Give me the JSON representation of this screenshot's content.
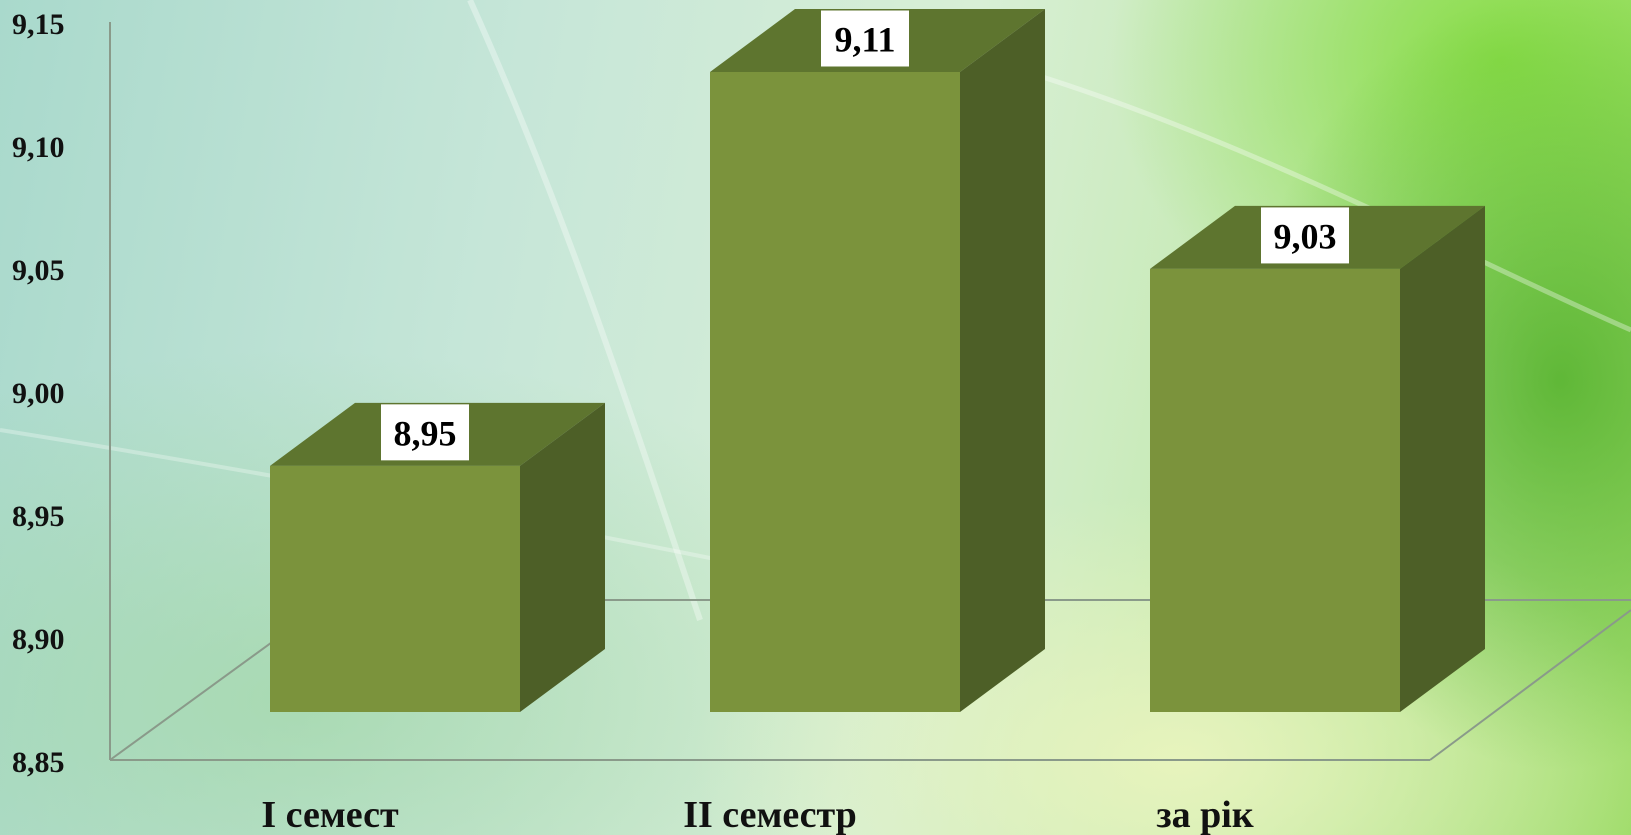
{
  "chart_data": {
    "type": "bar",
    "style": "3d-column",
    "categories": [
      "I семест",
      "II семестр",
      "за рік"
    ],
    "values": [
      8.95,
      9.11,
      9.03
    ],
    "data_labels": [
      "8,95",
      "9,11",
      "9,03"
    ],
    "y_ticks": [
      "8,85",
      "8,90",
      "8,95",
      "9,00",
      "9,05",
      "9,10",
      "9,15"
    ],
    "ylim": [
      8.85,
      9.15
    ],
    "grid": false,
    "legend": "none",
    "colors": {
      "bar_front": "#7b933c",
      "bar_top": "#5e752f",
      "bar_side": "#4d5f27",
      "axis": "#8a9a8a",
      "label_box": "#ffffff"
    }
  }
}
